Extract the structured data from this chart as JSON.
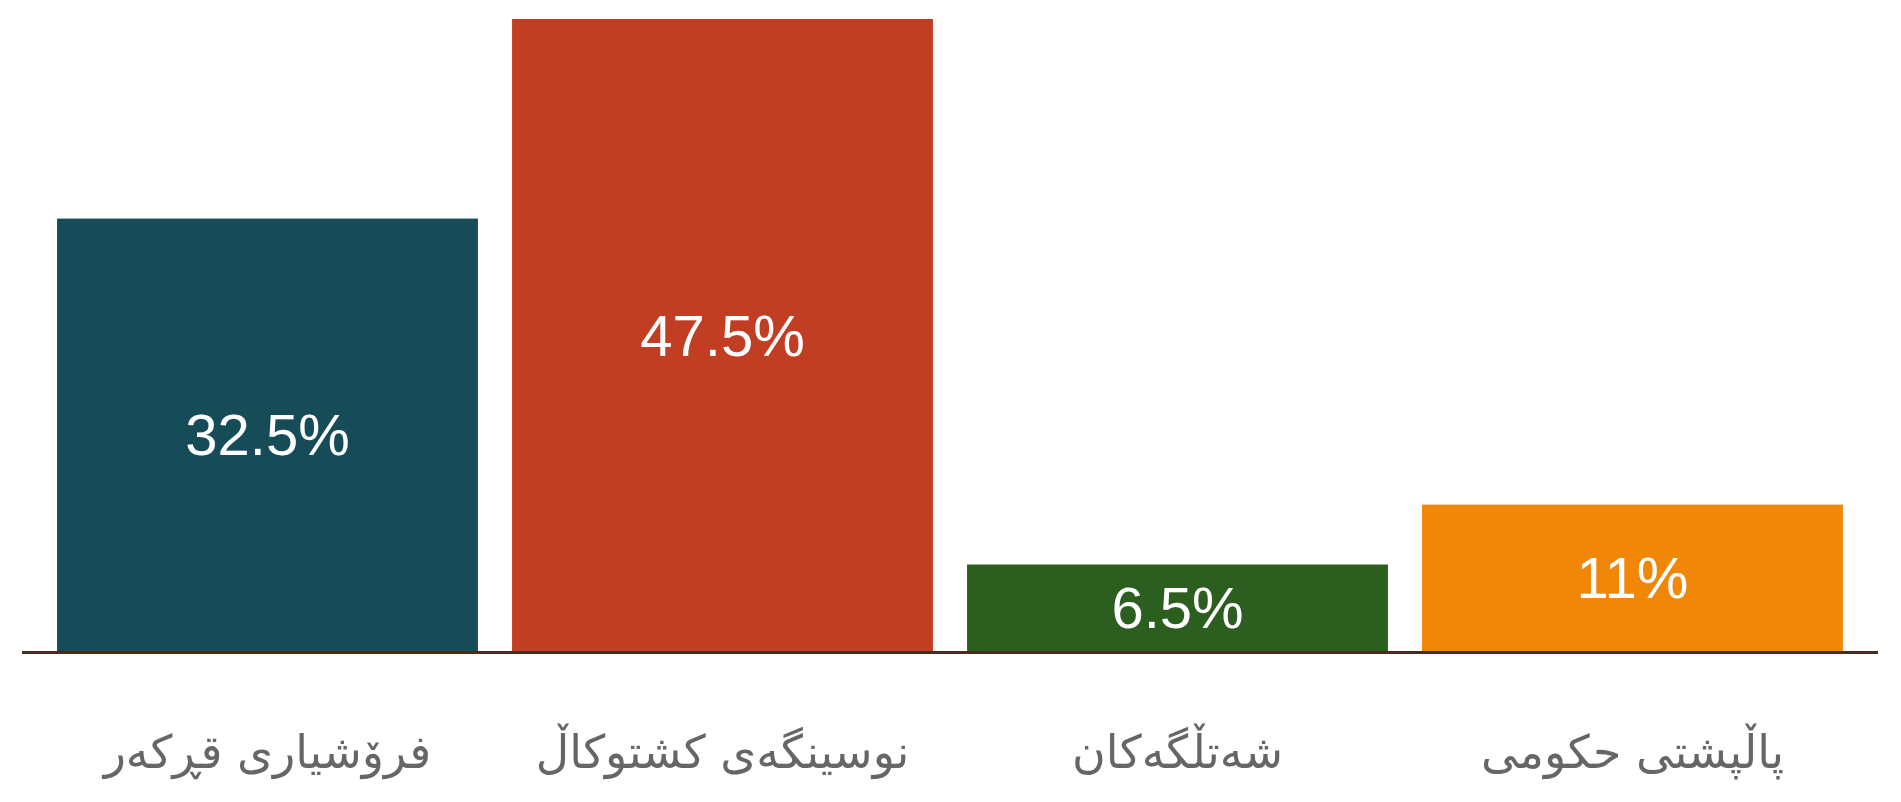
{
  "chart_data": {
    "type": "bar",
    "categories": [
      "فرۆشیاری قڕکەر",
      "نوسینگەی کشتوکاڵ",
      "شەتڵگەکان",
      "پاڵپشتی حکومی"
    ],
    "values": [
      32.5,
      47.5,
      6.5,
      11
    ],
    "colors": [
      "#164b58",
      "#c13e22",
      "#2c5e20",
      "#f08707"
    ],
    "value_labels": [
      "32.5%",
      "47.5%",
      "6.5%",
      "11%"
    ]
  }
}
